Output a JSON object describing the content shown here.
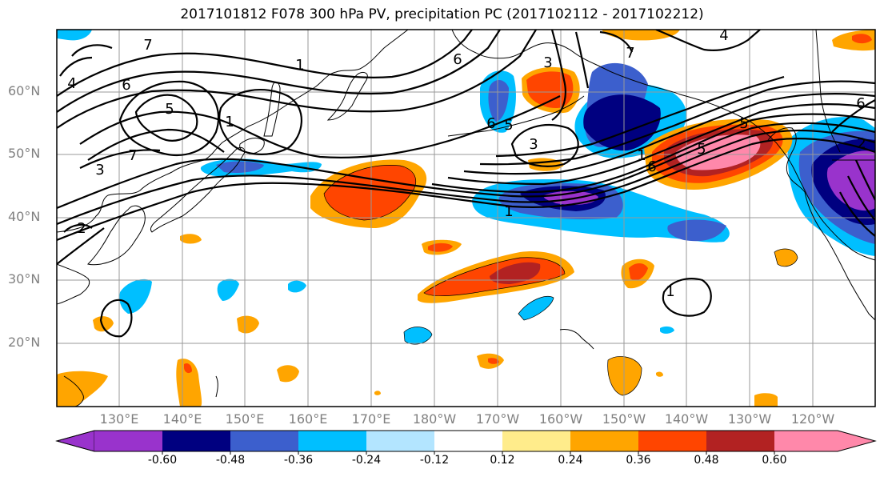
{
  "title": "2017101812 F078 300 hPa PV, precipitation PC (2017102112 - 2017102212)",
  "lat_labels": [
    "60°N",
    "50°N",
    "40°N",
    "30°N",
    "20°N"
  ],
  "lon_labels": [
    "130°E",
    "140°E",
    "150°E",
    "160°E",
    "170°E",
    "180°W",
    "170°W",
    "160°W",
    "150°W",
    "140°W",
    "130°W",
    "120°W"
  ],
  "colorbar": {
    "ticks": [
      "-0.60",
      "-0.48",
      "-0.36",
      "-0.24",
      "-0.12",
      "0.12",
      "0.24",
      "0.36",
      "0.48",
      "0.60"
    ],
    "colors": [
      "#9933cc",
      "#000080",
      "#3c5fcd",
      "#00bfff",
      "#b3e5ff",
      "#ffffff",
      "#ffec8b",
      "#ffa500",
      "#ff4500",
      "#b22222",
      "#ff88aa"
    ]
  },
  "contour_labels": [
    "6",
    "7",
    "5",
    "1",
    "4",
    "3",
    "7",
    "1",
    "2",
    "1",
    "6",
    "6",
    "5",
    "3",
    "1",
    "7",
    "6",
    "5",
    "5",
    "1",
    "2",
    "6",
    "4",
    "3"
  ],
  "colors": {
    "axis_label": "#808080",
    "grid": "#999999"
  }
}
